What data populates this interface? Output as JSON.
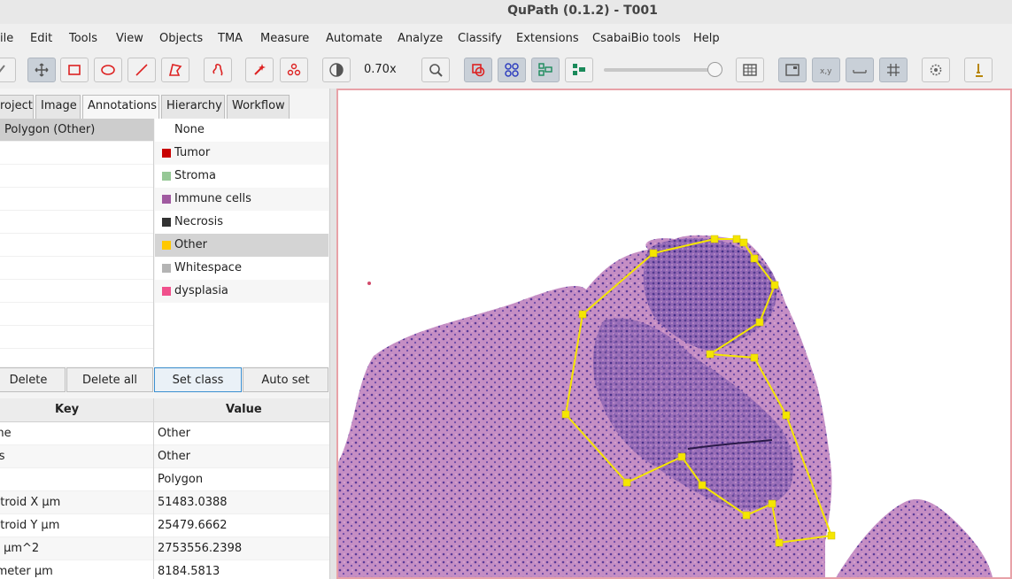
{
  "window": {
    "title": "QuPath (0.1.2) - T001"
  },
  "menu": [
    "ile",
    "Edit",
    "Tools",
    "View",
    "Objects",
    "TMA",
    "Measure",
    "Automate",
    "Analyze",
    "Classify",
    "Extensions",
    "CsabaiBio tools",
    "Help"
  ],
  "toolbar": {
    "zoom_value": "0.70x",
    "icons": [
      "move-icon",
      "rectangle-icon",
      "ellipse-icon",
      "line-icon",
      "polygon-icon",
      "brush-icon",
      "wand-icon",
      "points-icon",
      "contrast-icon",
      "zoom-icon",
      "annotations-icon",
      "detections-icon",
      "tma-icon",
      "fill-icon",
      "grid-icon",
      "overview-icon",
      "location-icon",
      "scalebar-icon",
      "counting-grid-icon",
      "settings-icon",
      "log-icon"
    ],
    "opacity_slider": 1.0
  },
  "tabs": [
    "roject",
    "Image",
    "Annotations",
    "Hierarchy",
    "Workflow"
  ],
  "active_tab": "Annotations",
  "annotations": [
    {
      "label": "Polygon (Other)"
    }
  ],
  "classes": [
    {
      "label": "None",
      "color": ""
    },
    {
      "label": "Tumor",
      "color": "#c80000"
    },
    {
      "label": "Stroma",
      "color": "#96c896"
    },
    {
      "label": "Immune cells",
      "color": "#a05aa0"
    },
    {
      "label": "Necrosis",
      "color": "#323232"
    },
    {
      "label": "Other",
      "color": "#ffc800"
    },
    {
      "label": "Whitespace",
      "color": "#b4b4b4"
    },
    {
      "label": "dysplasia",
      "color": "#f0508c"
    }
  ],
  "selected_class": "Other",
  "buttons": {
    "delete": "Delete",
    "delete_all": "Delete all",
    "set_class": "Set class",
    "auto_set": "Auto set"
  },
  "measurements": {
    "key_header": "Key",
    "value_header": "Value",
    "rows": [
      {
        "key": "me",
        "value": "Other"
      },
      {
        "key": "ss",
        "value": "Other"
      },
      {
        "key": "I",
        "value": "Polygon"
      },
      {
        "key": "ntroid X µm",
        "value": "51483.0388"
      },
      {
        "key": "ntroid Y µm",
        "value": "25479.6662"
      },
      {
        "key": "a µm^2",
        "value": "2753556.2398"
      },
      {
        "key": "imeter µm",
        "value": "8184.5813"
      }
    ]
  },
  "colors": {
    "annotation": "#f5e600",
    "viewer_border": "#e8a2a8",
    "tissue": "#c98fc0",
    "nuclei": "#5a3a98"
  }
}
